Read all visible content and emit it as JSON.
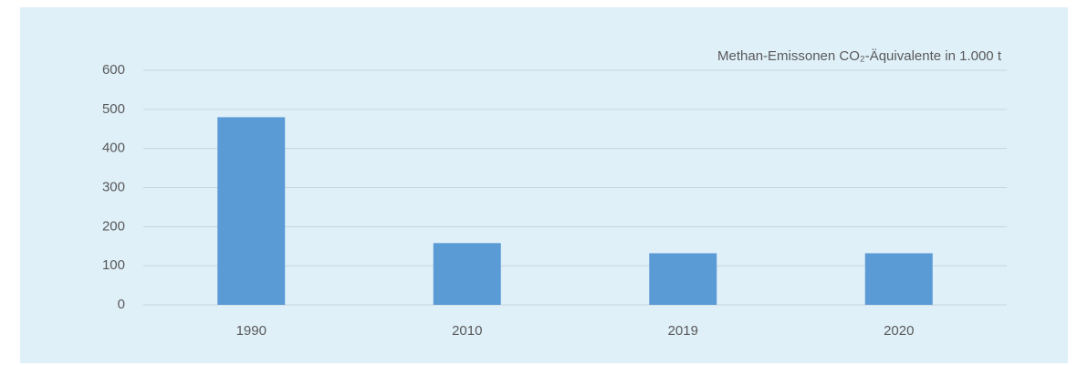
{
  "chart_data": {
    "type": "bar",
    "title": "Methan-Emissonen CO₂-Äquivalente in 1.000 t",
    "categories": [
      "1990",
      "2010",
      "2019",
      "2020"
    ],
    "values": [
      480,
      158,
      132,
      132
    ],
    "color": "#5b9bd5",
    "ylim": [
      0,
      600
    ],
    "yticks": [
      0,
      100,
      200,
      300,
      400,
      500,
      600
    ],
    "grid": true
  }
}
